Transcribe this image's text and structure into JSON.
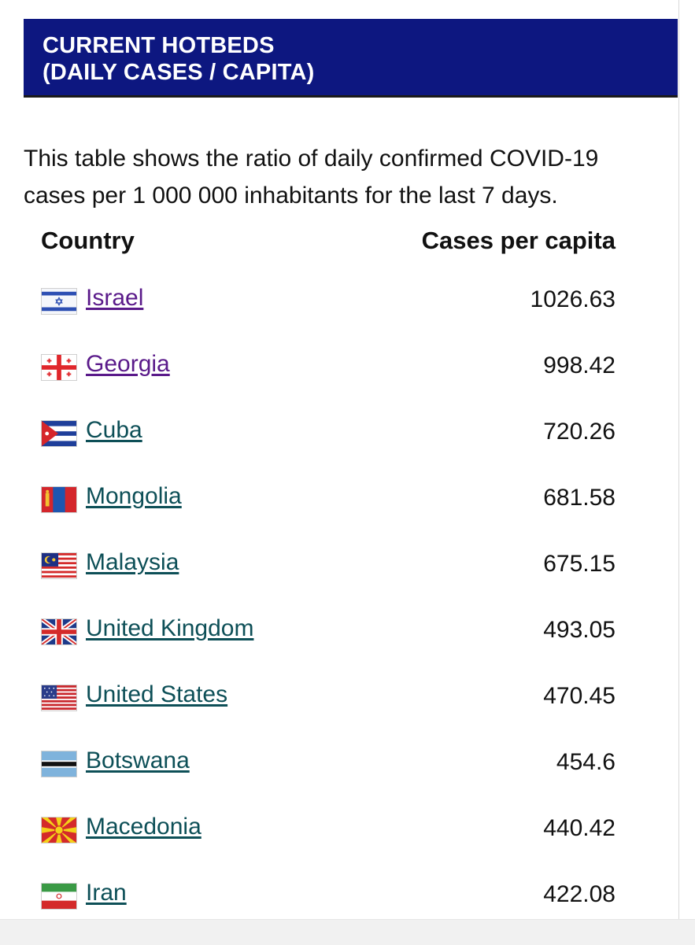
{
  "header": {
    "line1": "CURRENT HOTBEDS",
    "line2": "(DAILY CASES / CAPITA)",
    "background": "#0d1780"
  },
  "description": {
    "line1": "This table shows the ratio of daily confirmed COVID-19",
    "line2": "cases per 1 000 000 inhabitants for the last 7 days."
  },
  "table": {
    "headers": {
      "country": "Country",
      "cases": "Cases per capita"
    },
    "rows": [
      {
        "flag": "israel-flag-icon",
        "country": "Israel",
        "cases": "1026.63",
        "visited": true
      },
      {
        "flag": "georgia-flag-icon",
        "country": "Georgia",
        "cases": "998.42",
        "visited": true
      },
      {
        "flag": "cuba-flag-icon",
        "country": "Cuba",
        "cases": "720.26",
        "visited": false
      },
      {
        "flag": "mongolia-flag-icon",
        "country": "Mongolia",
        "cases": "681.58",
        "visited": false
      },
      {
        "flag": "malaysia-flag-icon",
        "country": "Malaysia",
        "cases": "675.15",
        "visited": false
      },
      {
        "flag": "united-kingdom-flag-icon",
        "country": "United Kingdom",
        "cases": "493.05",
        "visited": false
      },
      {
        "flag": "united-states-flag-icon",
        "country": "United States",
        "cases": "470.45",
        "visited": false
      },
      {
        "flag": "botswana-flag-icon",
        "country": "Botswana",
        "cases": "454.6",
        "visited": false
      },
      {
        "flag": "macedonia-flag-icon",
        "country": "Macedonia",
        "cases": "440.42",
        "visited": false
      },
      {
        "flag": "iran-flag-icon",
        "country": "Iran",
        "cases": "422.08",
        "visited": false
      }
    ]
  },
  "colors": {
    "link": "#0d4f57",
    "visited_link": "#5a1a8a"
  }
}
